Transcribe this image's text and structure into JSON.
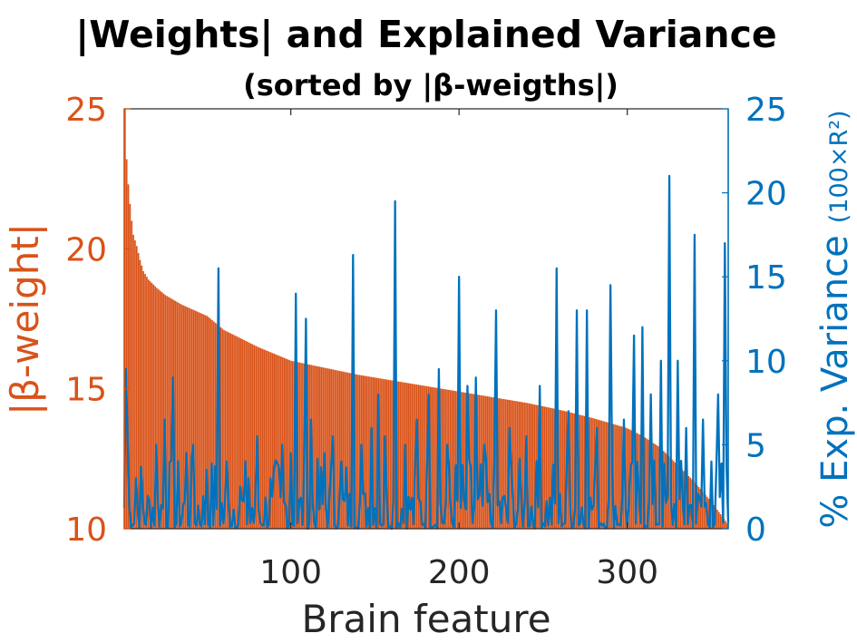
{
  "chart_data": {
    "type": "bar+line",
    "title": "|Weights| and Explained Variance",
    "subtitle": "(sorted by |β-weigths|)",
    "xlabel": "Brain feature",
    "ylabel_left": "|β-weight|",
    "ylabel_right_main": "% Exp. Variance",
    "ylabel_right_unit": "(100×R²)",
    "xlim": [
      1,
      360
    ],
    "ylim_left": [
      10,
      25
    ],
    "ylim_right": [
      0,
      25
    ],
    "x_ticks": [
      100,
      200,
      300
    ],
    "y_ticks_left": [
      10,
      15,
      20,
      25
    ],
    "y_ticks_right": [
      0,
      5,
      10,
      15,
      20,
      25
    ],
    "grid": false,
    "series": [
      {
        "name": "|β-weight|",
        "type": "bar",
        "axis": "left",
        "color": "#D95319",
        "profile": [
          [
            1,
            25.0
          ],
          [
            2,
            23.2
          ],
          [
            3,
            22.3
          ],
          [
            4,
            21.6
          ],
          [
            5,
            21.0
          ],
          [
            6,
            20.5
          ],
          [
            8,
            20.1
          ],
          [
            10,
            19.6
          ],
          [
            12,
            19.2
          ],
          [
            15,
            18.9
          ],
          [
            20,
            18.6
          ],
          [
            25,
            18.35
          ],
          [
            35,
            18.0
          ],
          [
            50,
            17.6
          ],
          [
            60,
            17.1
          ],
          [
            70,
            16.8
          ],
          [
            80,
            16.5
          ],
          [
            90,
            16.25
          ],
          [
            100,
            16.0
          ],
          [
            120,
            15.75
          ],
          [
            140,
            15.5
          ],
          [
            160,
            15.3
          ],
          [
            180,
            15.1
          ],
          [
            200,
            14.9
          ],
          [
            220,
            14.7
          ],
          [
            240,
            14.5
          ],
          [
            260,
            14.25
          ],
          [
            280,
            13.95
          ],
          [
            300,
            13.6
          ],
          [
            310,
            13.3
          ],
          [
            320,
            12.9
          ],
          [
            330,
            12.3
          ],
          [
            340,
            11.7
          ],
          [
            350,
            11.0
          ],
          [
            355,
            10.6
          ],
          [
            360,
            10.2
          ]
        ]
      },
      {
        "name": "% Exp. Variance",
        "type": "line",
        "axis": "right",
        "color": "#0072BD",
        "peaks": [
          [
            2,
            9.5
          ],
          [
            3,
            5.5
          ],
          [
            8,
            3.0
          ],
          [
            20,
            5.0
          ],
          [
            25,
            6.5
          ],
          [
            30,
            9.0
          ],
          [
            38,
            4.5
          ],
          [
            42,
            5.0
          ],
          [
            50,
            3.5
          ],
          [
            57,
            15.5
          ],
          [
            62,
            4.0
          ],
          [
            70,
            2.5
          ],
          [
            75,
            3.0
          ],
          [
            80,
            5.5
          ],
          [
            88,
            3.0
          ],
          [
            95,
            5.0
          ],
          [
            100,
            4.5
          ],
          [
            103,
            14.0
          ],
          [
            109,
            12.5
          ],
          [
            112,
            6.5
          ],
          [
            120,
            4.5
          ],
          [
            125,
            5.5
          ],
          [
            130,
            4.0
          ],
          [
            137,
            16.3
          ],
          [
            142,
            5.0
          ],
          [
            148,
            6.0
          ],
          [
            152,
            8.0
          ],
          [
            156,
            5.5
          ],
          [
            162,
            19.5
          ],
          [
            168,
            5.0
          ],
          [
            175,
            6.5
          ],
          [
            182,
            8.0
          ],
          [
            188,
            9.5
          ],
          [
            193,
            5.0
          ],
          [
            200,
            15.0
          ],
          [
            205,
            8.5
          ],
          [
            210,
            9.0
          ],
          [
            215,
            5.0
          ],
          [
            222,
            13.0
          ],
          [
            230,
            6.0
          ],
          [
            240,
            5.5
          ],
          [
            248,
            8.5
          ],
          [
            258,
            15.5
          ],
          [
            265,
            7.0
          ],
          [
            270,
            13.0
          ],
          [
            276,
            13.0
          ],
          [
            282,
            6.0
          ],
          [
            290,
            14.5
          ],
          [
            298,
            6.5
          ],
          [
            304,
            11.5
          ],
          [
            309,
            12.0
          ],
          [
            314,
            8.0
          ],
          [
            320,
            10.0
          ],
          [
            325,
            21.0
          ],
          [
            330,
            10.0
          ],
          [
            335,
            6.0
          ],
          [
            340,
            17.5
          ],
          [
            345,
            6.5
          ],
          [
            350,
            4.0
          ],
          [
            354,
            8.0
          ],
          [
            358,
            17.0
          ]
        ]
      }
    ]
  }
}
